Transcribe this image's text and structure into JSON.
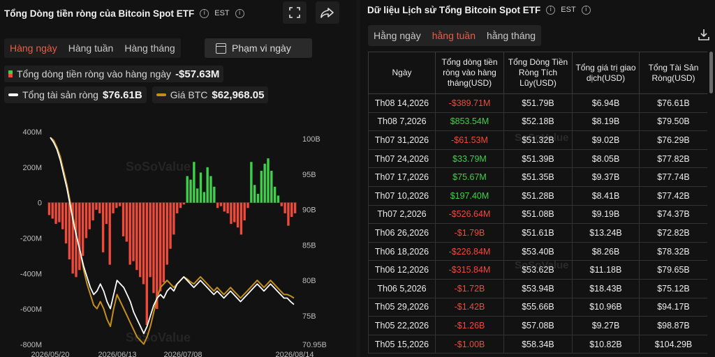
{
  "left_panel": {
    "title": "Tổng Dòng tiền ròng của Bitcoin Spot ETF",
    "timezone": "EST",
    "tabs": [
      "Hàng ngày",
      "Hàng tuần",
      "Hàng tháng"
    ],
    "active_tab": 0,
    "range_button": "Phạm vi ngày",
    "legend": {
      "netflow_label": "Tổng dòng tiền ròng vào hàng ngày",
      "netflow_value": "-$57.63M",
      "assets_label": "Tổng tài sản ròng",
      "assets_value": "$76.61B",
      "btc_label": "Giá BTC",
      "btc_value": "$62,968.05"
    },
    "watermark": "SoSoValue"
  },
  "colors": {
    "positive": "#3ed04a",
    "negative": "#f04a3a",
    "assets_line": "#ffffff",
    "btc_line": "#c48f1c",
    "accent": "#ef5b45"
  },
  "icons": {
    "info": "info-icon",
    "expand": "fullscreen-icon",
    "share": "share-icon",
    "calendar": "calendar-icon",
    "download": "download-icon"
  },
  "chart_data": {
    "type": "bar",
    "left_axis": {
      "ticks": [
        "400M",
        "200M",
        "0",
        "-200M",
        "-400M",
        "-600M",
        "-800M"
      ],
      "ylim": [
        -800,
        400
      ]
    },
    "right_axis": {
      "ticks": [
        "100B",
        "95B",
        "90B",
        "85B",
        "80B",
        "75B",
        "70.95B"
      ],
      "ylim": [
        70.95,
        101
      ]
    },
    "x_ticks": [
      "2026/05/20",
      "2026/06/13",
      "2026/07/08",
      "2026/08/14"
    ],
    "series": [
      {
        "name": "Tổng dòng tiền ròng vào hàng ngày",
        "type": "bar",
        "values": [
          -70,
          -90,
          -120,
          -110,
          -150,
          -230,
          -320,
          -400,
          -420,
          -380,
          -300,
          -200,
          -150,
          -100,
          -40,
          -60,
          -280,
          -120,
          -350,
          -60,
          -30,
          -20,
          -190,
          -220,
          -350,
          -330,
          -380,
          -420,
          -460,
          -690,
          -420,
          -510,
          -600,
          -500,
          -450,
          -350,
          -260,
          -180,
          -60,
          -30,
          -10,
          150,
          130,
          230,
          80,
          170,
          60,
          200,
          150,
          90,
          -30,
          -20,
          -50,
          -60,
          -120,
          -110,
          -140,
          -180,
          -100,
          -30,
          230,
          100,
          50,
          180,
          220,
          250,
          180,
          90,
          40,
          -20,
          -60,
          -130,
          -80,
          -60
        ]
      },
      {
        "name": "Tổng tài sản ròng",
        "type": "line",
        "values": [
          100.2,
          99.5,
          98.5,
          97,
          95,
          93,
          90.5,
          88,
          86,
          84,
          82,
          80.5,
          79,
          78,
          78.5,
          79.5,
          78.5,
          77,
          76,
          78,
          80,
          79.5,
          79,
          78,
          77,
          75.5,
          74.5,
          73.5,
          72.5,
          73.5,
          75,
          76.5,
          77.5,
          78,
          77.5,
          78.5,
          79,
          78.5,
          79.5,
          80,
          80.5,
          80,
          79.5,
          79,
          79.5,
          80,
          79.5,
          79,
          78.5,
          78,
          78.5,
          78,
          77.5,
          78,
          78.5,
          78,
          77.5,
          77,
          77.5,
          78,
          78.5,
          79,
          79.5,
          79,
          78.5,
          79,
          79.5,
          79,
          78.5,
          78,
          77.5,
          77.5,
          77,
          76.6
        ]
      },
      {
        "name": "Giá BTC",
        "type": "line",
        "values": [
          100.2,
          99.8,
          98.8,
          97.5,
          95.5,
          93.5,
          91,
          88.5,
          86,
          84,
          81.5,
          79.5,
          78,
          76.5,
          76,
          77,
          76,
          74.5,
          73.5,
          76,
          78,
          77,
          76,
          75,
          74,
          73,
          72,
          71.5,
          71,
          72,
          73.5,
          75.5,
          77.5,
          79,
          79.5,
          80,
          79.5,
          79,
          79.5,
          80,
          80.5,
          80.2,
          79.8,
          79.5,
          80,
          80.5,
          80,
          79.5,
          79,
          78.5,
          79,
          78.5,
          78,
          78.5,
          79,
          78.5,
          78,
          77.5,
          78,
          78.5,
          79,
          79.5,
          80,
          79.5,
          79,
          79.5,
          80,
          79.5,
          79,
          78.5,
          78,
          78,
          77.8,
          77.5
        ]
      }
    ]
  },
  "right_panel": {
    "title": "Dữ liệu Lịch sử Tổng Bitcoin Spot ETF",
    "timezone": "EST",
    "tabs": [
      "Hằng ngày",
      "hằng tuần",
      "hằng tháng"
    ],
    "active_tab": 1,
    "columns": [
      "Ngày",
      "Tổng dòng tiền ròng vào hàng tháng(USD)",
      "Tổng Dòng Tiền Ròng Tích Lũy(USD)",
      "Tổng giá trị giao dịch(USD)",
      "Tổng Tài Sản Ròng(USD)"
    ],
    "rows": [
      {
        "date": "Th08 14,2026",
        "flow": "-$389.71M",
        "sign": "neg",
        "cum": "$51.79B",
        "vol": "$6.94B",
        "assets": "$76.61B"
      },
      {
        "date": "Th08 7,2026",
        "flow": "$853.54M",
        "sign": "pos",
        "cum": "$52.18B",
        "vol": "$8.19B",
        "assets": "$79.50B"
      },
      {
        "date": "Th07 31,2026",
        "flow": "-$61.53M",
        "sign": "neg",
        "cum": "$51.32B",
        "vol": "$9.02B",
        "assets": "$76.29B"
      },
      {
        "date": "Th07 24,2026",
        "flow": "$33.79M",
        "sign": "pos",
        "cum": "$51.39B",
        "vol": "$8.05B",
        "assets": "$77.82B"
      },
      {
        "date": "Th07 17,2026",
        "flow": "$75.67M",
        "sign": "pos",
        "cum": "$51.35B",
        "vol": "$9.37B",
        "assets": "$77.74B"
      },
      {
        "date": "Th07 10,2026",
        "flow": "$197.40M",
        "sign": "pos",
        "cum": "$51.28B",
        "vol": "$8.41B",
        "assets": "$77.42B"
      },
      {
        "date": "Th07 2,2026",
        "flow": "-$526.64M",
        "sign": "neg",
        "cum": "$51.08B",
        "vol": "$9.19B",
        "assets": "$74.37B"
      },
      {
        "date": "Th06 26,2026",
        "flow": "-$1.79B",
        "sign": "neg",
        "cum": "$51.61B",
        "vol": "$13.24B",
        "assets": "$72.82B"
      },
      {
        "date": "Th06 18,2026",
        "flow": "-$226.84M",
        "sign": "neg",
        "cum": "$53.40B",
        "vol": "$8.26B",
        "assets": "$78.32B"
      },
      {
        "date": "Th06 12,2026",
        "flow": "-$315.84M",
        "sign": "neg",
        "cum": "$53.62B",
        "vol": "$11.18B",
        "assets": "$79.65B"
      },
      {
        "date": "Th06 5,2026",
        "flow": "-$1.72B",
        "sign": "neg",
        "cum": "$53.94B",
        "vol": "$18.43B",
        "assets": "$75.12B"
      },
      {
        "date": "Th05 29,2026",
        "flow": "-$1.42B",
        "sign": "neg",
        "cum": "$55.66B",
        "vol": "$10.96B",
        "assets": "$94.17B"
      },
      {
        "date": "Th05 22,2026",
        "flow": "-$1.26B",
        "sign": "neg",
        "cum": "$57.08B",
        "vol": "$9.27B",
        "assets": "$98.87B"
      },
      {
        "date": "Th05 15,2026",
        "flow": "-$1.00B",
        "sign": "neg",
        "cum": "$58.34B",
        "vol": "$10.82B",
        "assets": "$104.29B"
      }
    ]
  }
}
